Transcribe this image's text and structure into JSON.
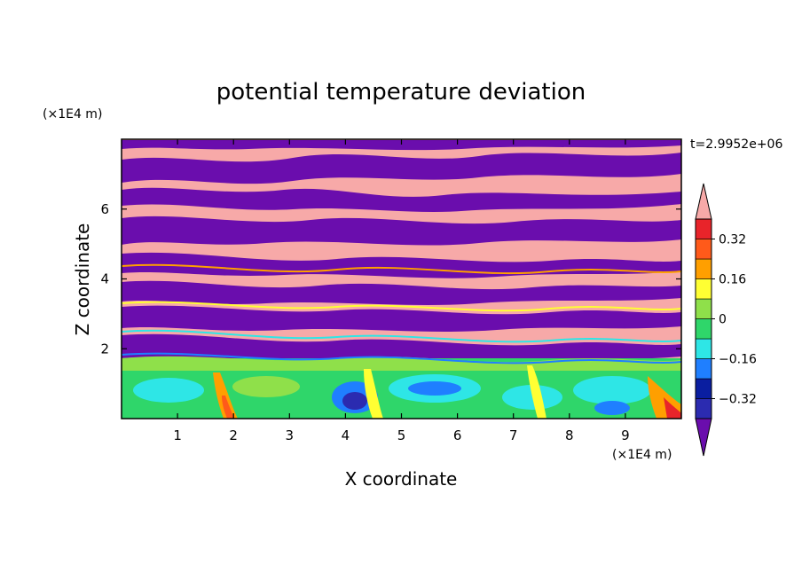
{
  "chart_data": {
    "type": "heatmap",
    "title": "potential temperature deviation",
    "xlabel": "X coordinate",
    "ylabel": "Z coordinate",
    "x_unit": "(×1E4 m)",
    "y_unit": "(×1E4 m)",
    "time_label": "t=2.9952e+06",
    "xlim": [
      0,
      10
    ],
    "ylim": [
      0,
      8
    ],
    "x_ticks": [
      1,
      2,
      3,
      4,
      5,
      6,
      7,
      8,
      9
    ],
    "y_ticks": [
      2,
      4,
      6
    ],
    "colorbar": {
      "levels": [
        -0.4,
        -0.32,
        -0.24,
        -0.16,
        -0.08,
        0,
        0.08,
        0.16,
        0.24,
        0.32,
        0.4
      ],
      "labels": [
        "0.32",
        "0.16",
        "0",
        "−0.16",
        "−0.32"
      ],
      "label_values": [
        0.32,
        0.16,
        0,
        -0.16,
        -0.32
      ],
      "colors": [
        "#6a0dad",
        "#2b2bb0",
        "#0a1ea0",
        "#1f7fff",
        "#2ee6e6",
        "#2fd66a",
        "#8fe04a",
        "#ffff33",
        "#ff9f00",
        "#ff5a1a",
        "#e8242a",
        "#f7a9a8"
      ],
      "extend": "both"
    }
  }
}
